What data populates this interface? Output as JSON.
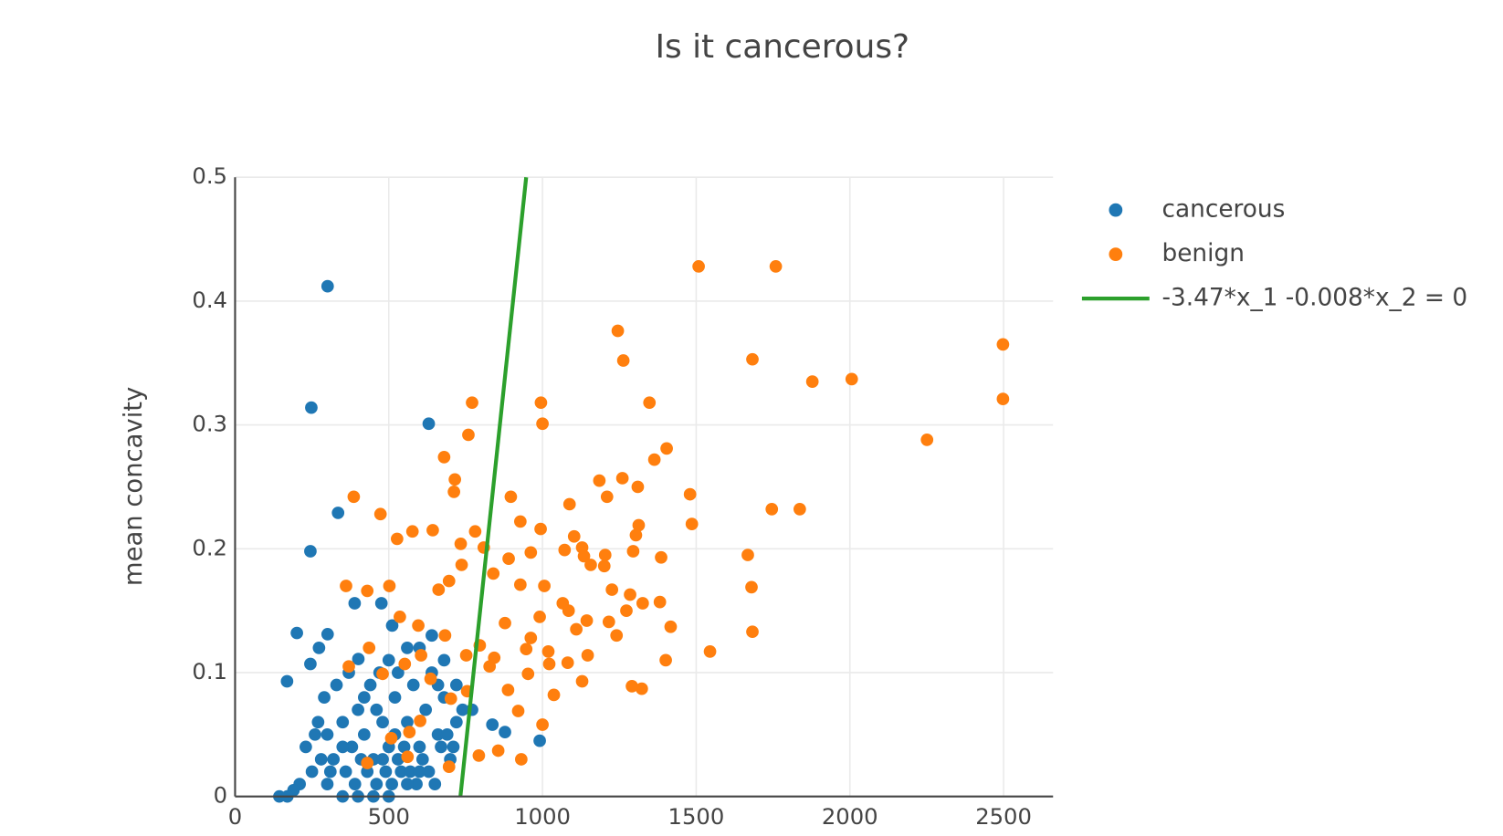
{
  "chart_data": {
    "type": "scatter",
    "title": "Is it cancerous?",
    "y_label": "mean concavity",
    "xlim": [
      0,
      2661
    ],
    "ylim": [
      0,
      0.5
    ],
    "xticks": [
      0,
      500,
      1000,
      1500,
      2000,
      2500
    ],
    "yticks": [
      0,
      0.1,
      0.2,
      0.3,
      0.4,
      0.5
    ],
    "grid": true,
    "series": [
      {
        "name": "cancerous",
        "color": "#1f77b4",
        "mode": "markers",
        "x": [
          301,
          248,
          630,
          335,
          245,
          389,
          476,
          201,
          301,
          511,
          169,
          245,
          273,
          401,
          991,
          878,
          837,
          771,
          144,
          300,
          320,
          350,
          380,
          400,
          420,
          450,
          480,
          500,
          520,
          540,
          560,
          580,
          600,
          620,
          640,
          660,
          680,
          700,
          720,
          360,
          390,
          410,
          430,
          460,
          490,
          510,
          530,
          550,
          570,
          590,
          610,
          630,
          650,
          670,
          250,
          230,
          210,
          270,
          290,
          330,
          370,
          440,
          470,
          500,
          530,
          560,
          600,
          640,
          690,
          710,
          740,
          420,
          460,
          350,
          310,
          280,
          260,
          480,
          520,
          560,
          600,
          400,
          450,
          500,
          350,
          300,
          660,
          680,
          720,
          190,
          170
        ],
        "values": [
          0.412,
          0.314,
          0.301,
          0.229,
          0.198,
          0.156,
          0.156,
          0.132,
          0.131,
          0.138,
          0.093,
          0.107,
          0.12,
          0.111,
          0.045,
          0.052,
          0.058,
          0.07,
          0,
          0.05,
          0.03,
          0.06,
          0.04,
          0.07,
          0.05,
          0.03,
          0.06,
          0.04,
          0.08,
          0.02,
          0.06,
          0.09,
          0.04,
          0.07,
          0.1,
          0.05,
          0.08,
          0.03,
          0.06,
          0.02,
          0.01,
          0.03,
          0.02,
          0.01,
          0.02,
          0.01,
          0.03,
          0.04,
          0.02,
          0.01,
          0.03,
          0.02,
          0.01,
          0.04,
          0.02,
          0.04,
          0.01,
          0.06,
          0.08,
          0.09,
          0.1,
          0.09,
          0.1,
          0.11,
          0.1,
          0.12,
          0.12,
          0.13,
          0.05,
          0.04,
          0.07,
          0.08,
          0.07,
          0.04,
          0.02,
          0.03,
          0.05,
          0.03,
          0.05,
          0.01,
          0.02,
          0,
          0,
          0,
          0,
          0.01,
          0.09,
          0.11,
          0.09,
          0.005,
          0
        ]
      },
      {
        "name": "benign",
        "color": "#ff7f0e",
        "mode": "markers",
        "x": [
          1508,
          1759,
          2498,
          2498,
          1245,
          1263,
          1683,
          1878,
          2006,
          2251,
          771,
          995,
          1000,
          1348,
          759,
          1404,
          1364,
          680,
          715,
          712,
          386,
          473,
          897,
          1480,
          1486,
          1746,
          1837,
          1668,
          1680,
          1683,
          1545,
          1401,
          1417,
          1386,
          1382,
          361,
          430,
          502,
          527,
          577,
          643,
          781,
          928,
          994,
          1088,
          1185,
          1260,
          1310,
          1313,
          1210,
          878,
          843,
          888,
          921,
          931,
          1000,
          793,
          856,
          696,
          430,
          561,
          508,
          928,
          1006,
          1066,
          1144,
          1241,
          1291,
          1323,
          1129,
          1037,
          1082,
          1147,
          1019,
          947,
          953,
          796,
          752,
          683,
          596,
          536,
          436,
          370,
          480,
          552,
          636,
          702,
          755,
          828,
          737,
          696,
          662,
          734,
          809,
          840,
          890,
          962,
          1072,
          1135,
          1204,
          1295,
          1304,
          1103,
          1129,
          1157,
          1201,
          1226,
          1285,
          1326,
          1273,
          1216,
          1110,
          1085,
          991,
          962,
          1022,
          602,
          567,
          605
        ],
        "values": [
          0.428,
          0.428,
          0.365,
          0.321,
          0.376,
          0.352,
          0.353,
          0.335,
          0.337,
          0.288,
          0.318,
          0.318,
          0.301,
          0.318,
          0.292,
          0.281,
          0.272,
          0.274,
          0.256,
          0.246,
          0.242,
          0.228,
          0.242,
          0.244,
          0.22,
          0.232,
          0.232,
          0.195,
          0.169,
          0.133,
          0.117,
          0.11,
          0.137,
          0.193,
          0.157,
          0.17,
          0.166,
          0.17,
          0.208,
          0.214,
          0.215,
          0.214,
          0.222,
          0.216,
          0.236,
          0.255,
          0.257,
          0.25,
          0.219,
          0.242,
          0.14,
          0.112,
          0.086,
          0.069,
          0.03,
          0.058,
          0.033,
          0.037,
          0.024,
          0.027,
          0.032,
          0.047,
          0.171,
          0.17,
          0.156,
          0.142,
          0.13,
          0.089,
          0.087,
          0.093,
          0.082,
          0.108,
          0.114,
          0.117,
          0.119,
          0.099,
          0.122,
          0.114,
          0.13,
          0.138,
          0.145,
          0.12,
          0.105,
          0.099,
          0.107,
          0.095,
          0.079,
          0.085,
          0.105,
          0.187,
          0.174,
          0.167,
          0.204,
          0.201,
          0.18,
          0.192,
          0.197,
          0.199,
          0.194,
          0.195,
          0.198,
          0.211,
          0.21,
          0.201,
          0.187,
          0.186,
          0.167,
          0.163,
          0.156,
          0.15,
          0.141,
          0.135,
          0.15,
          0.145,
          0.128,
          0.107,
          0.061,
          0.052,
          0.114
        ]
      },
      {
        "name": "-3.47*x_1 -0.008*x_2  = 0",
        "color": "#2ca02c",
        "mode": "lines",
        "x": [
          733,
          947
        ],
        "values": [
          0,
          0.5
        ]
      }
    ]
  }
}
